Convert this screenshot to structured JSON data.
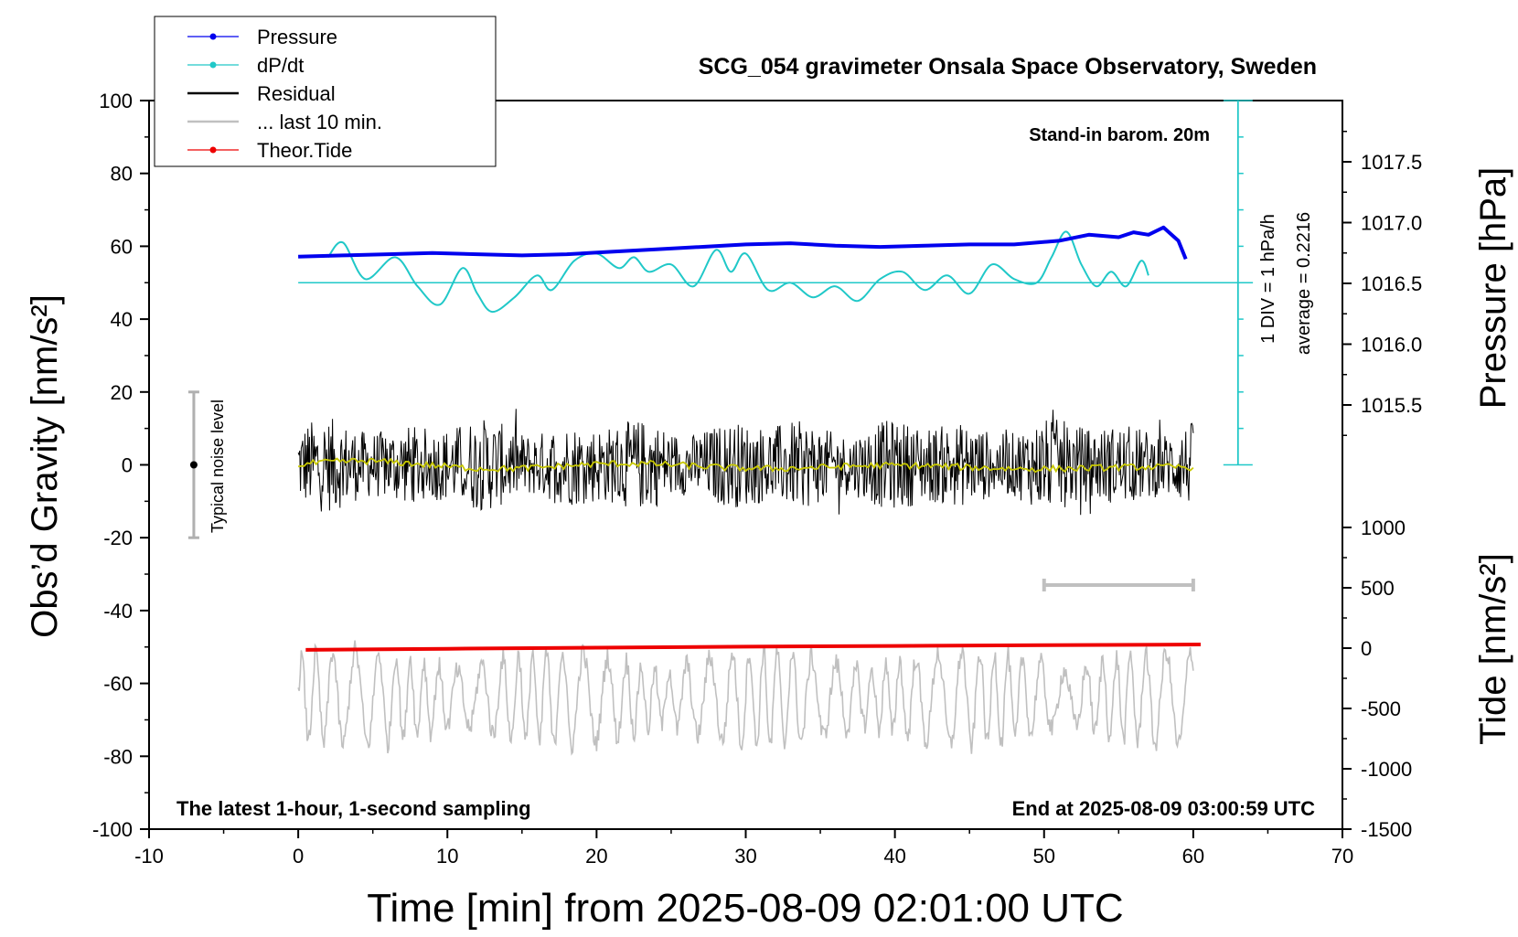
{
  "chart_data": {
    "type": "line",
    "title": "SCG_054 gravimeter Onsala Space Observatory, Sweden",
    "xlabel": "Time [min] from 2025-08-09 02:01:00 UTC",
    "ylabel_left": "Obs’d Gravity [nm/s²]",
    "ylabel_right_pressure": "Pressure [hPa]",
    "ylabel_right_tide": "Tide [nm/s²]",
    "xlim": [
      -10,
      70
    ],
    "ylim": [
      -100,
      100
    ],
    "x_ticks": [
      "-10",
      "0",
      "10",
      "20",
      "30",
      "40",
      "50",
      "60",
      "70"
    ],
    "y_ticks": [
      "-100",
      "-80",
      "-60",
      "-40",
      "-20",
      "0",
      "20",
      "40",
      "60",
      "80",
      "100"
    ],
    "pressure_axis": {
      "ticks": [
        "1015.5",
        "1016.0",
        "1016.5",
        "1017.0",
        "1017.5"
      ],
      "values": [
        1015.5,
        1016.0,
        1016.5,
        1017.0,
        1017.5
      ]
    },
    "tide_axis": {
      "ticks": [
        "-1500",
        "-1000",
        "-500",
        "0",
        "500",
        "1000"
      ],
      "values": [
        -1500,
        -1000,
        -500,
        0,
        500,
        1000
      ]
    },
    "annotations": {
      "barometer": "Stand-in barom. 20m",
      "dpdt_scale": "1 DIV = 1 hPa/h",
      "dpdt_average": "average = 0.2216",
      "noise": "Typical noise level",
      "left_footer": "The latest 1-hour, 1-second sampling",
      "right_footer": "End at 2025-08-09 03:00:59 UTC"
    },
    "legend": [
      {
        "label": "Pressure",
        "color": "#0000ee",
        "marker": true
      },
      {
        "label": "dP/dt",
        "color": "#20c8c8",
        "marker": true
      },
      {
        "label": "Residual",
        "color": "#000000",
        "marker": false
      },
      {
        "label": "... last 10 min.",
        "color": "#c0c0c0",
        "marker": false
      },
      {
        "label": "Theor.Tide",
        "color": "#ee0000",
        "marker": true
      }
    ],
    "legend_position": "top-left",
    "grid": false,
    "noise_bar": {
      "x": -7,
      "center": 0,
      "range": [
        -20,
        20
      ]
    },
    "last10_bar": {
      "x": [
        50,
        60
      ],
      "y": -33
    },
    "series": [
      {
        "name": "Pressure",
        "color": "#0000ee",
        "x": [
          0,
          3,
          6,
          9,
          12,
          15,
          18,
          21,
          24,
          27,
          30,
          33,
          36,
          39,
          42,
          45,
          48,
          51,
          53,
          55,
          56,
          57,
          58,
          59,
          59.5
        ],
        "values": [
          1016.72,
          1016.73,
          1016.74,
          1016.75,
          1016.74,
          1016.73,
          1016.74,
          1016.76,
          1016.78,
          1016.8,
          1016.82,
          1016.83,
          1016.81,
          1016.8,
          1016.81,
          1016.82,
          1016.82,
          1016.85,
          1016.9,
          1016.88,
          1016.92,
          1016.9,
          1016.96,
          1016.85,
          1016.7
        ]
      },
      {
        "name": "dP/dt",
        "color": "#20c8c8",
        "baseline": 50,
        "x": [
          2,
          3,
          4.5,
          6.5,
          8,
          9.5,
          11,
          12,
          13,
          14.5,
          16,
          17,
          18.5,
          20,
          21.5,
          22.5,
          23.5,
          25,
          26.5,
          28,
          29,
          30,
          31.5,
          33,
          34.5,
          36,
          37.5,
          39,
          40.5,
          42,
          43.5,
          45,
          46.5,
          48,
          49.5,
          50.5,
          51.5,
          52.5,
          53.5,
          54.5,
          55.5,
          56.5,
          57
        ],
        "values": [
          57,
          61,
          51,
          57,
          49,
          44,
          54,
          47,
          42,
          46,
          52,
          48,
          56,
          58,
          54,
          57,
          53,
          55,
          49,
          59,
          53,
          58,
          48,
          50,
          46,
          49,
          45,
          51,
          53,
          48,
          52,
          47,
          55,
          51,
          50,
          57,
          64,
          55,
          49,
          53,
          49,
          56,
          52
        ]
      },
      {
        "name": "Residual",
        "color": "#000000",
        "amplitude": 13,
        "x": [
          0,
          60
        ]
      },
      {
        "name": "Residual smoothed",
        "color": "#c8c800",
        "x": [
          0,
          60
        ]
      },
      {
        "name": "... last 10 min.",
        "color": "#c0c0c0",
        "center": -64,
        "amplitude": 13,
        "x": [
          0,
          60
        ]
      },
      {
        "name": "Theor.Tide",
        "color": "#ee0000",
        "x": [
          0.5,
          10,
          20,
          30,
          40,
          50,
          60.5
        ],
        "values": [
          -50.8,
          -50.5,
          -50.2,
          -49.9,
          -49.7,
          -49.5,
          -49.3
        ]
      }
    ]
  }
}
